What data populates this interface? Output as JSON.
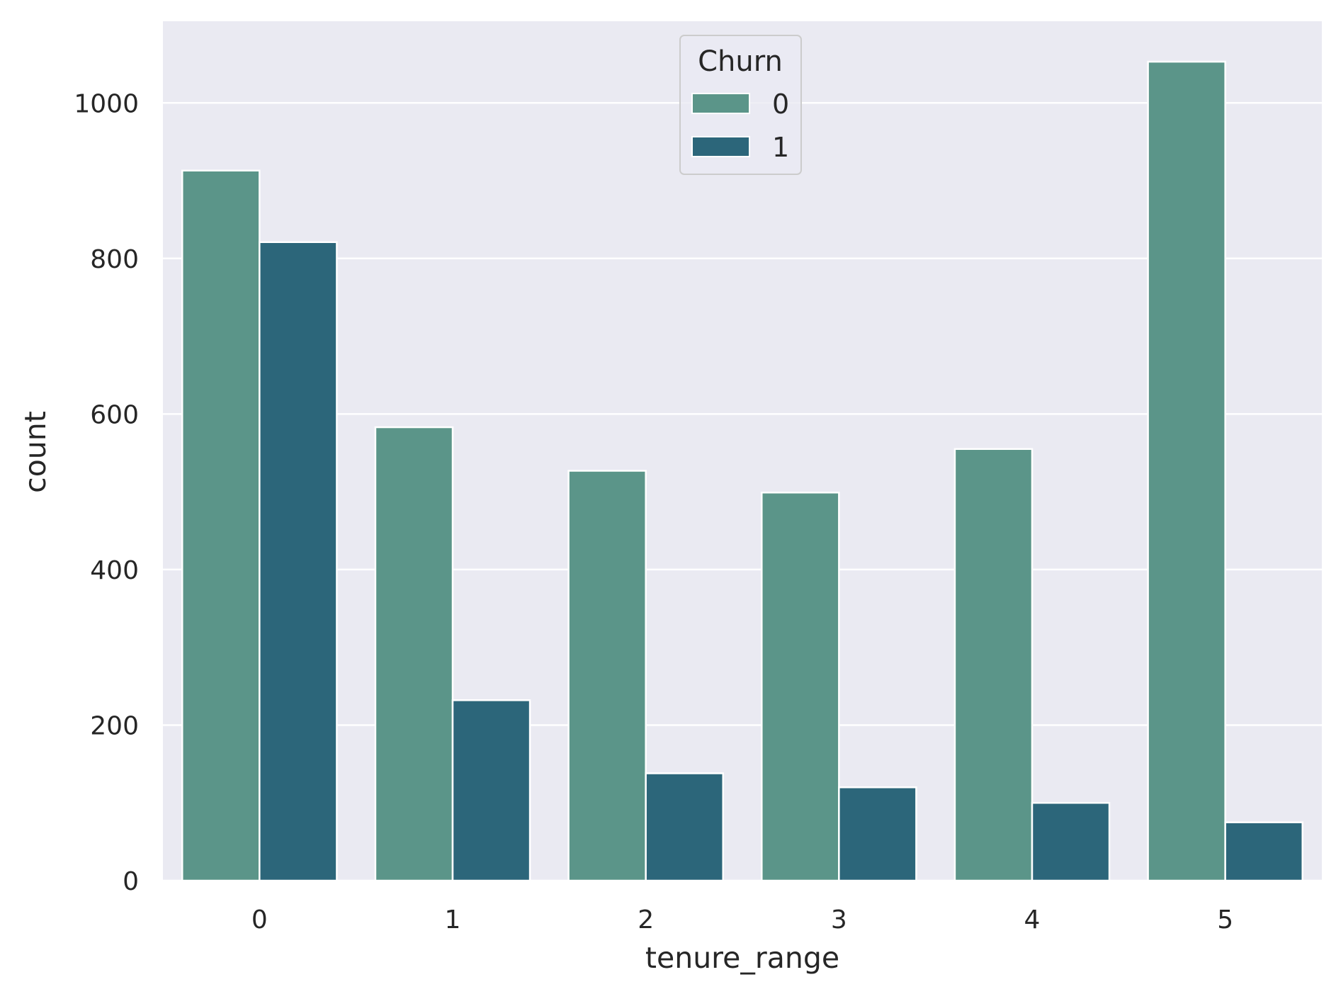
{
  "chart_data": {
    "type": "bar",
    "xlabel": "tenure_range",
    "ylabel": "count",
    "categories": [
      "0",
      "1",
      "2",
      "3",
      "4",
      "5"
    ],
    "series": [
      {
        "name": "0",
        "color": "#5b9589",
        "values": [
          913,
          583,
          527,
          499,
          555,
          1053
        ]
      },
      {
        "name": "1",
        "color": "#2c667a",
        "values": [
          821,
          232,
          138,
          120,
          100,
          75
        ]
      }
    ],
    "ylim": [
      0,
      1105
    ],
    "yticks": [
      0,
      200,
      400,
      600,
      800,
      1000
    ],
    "legend": {
      "title": "Churn",
      "position": "top-center"
    },
    "grid": true,
    "background": "#eaeaf2"
  }
}
